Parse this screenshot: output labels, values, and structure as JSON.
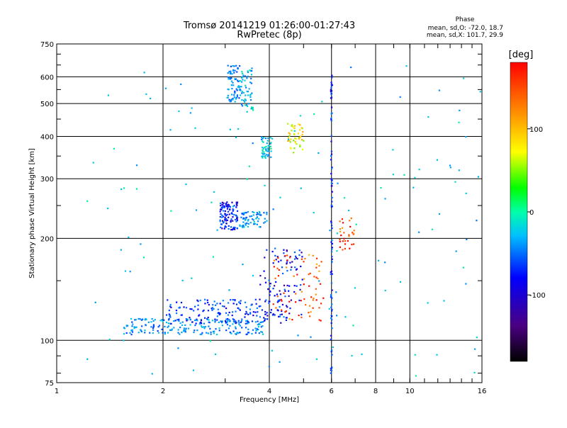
{
  "chart_data": {
    "type": "scatter",
    "title": "Tromsø 20141219 01:26:00-01:27:43",
    "subtitle": "RwPretec (8p)",
    "xlabel": "Frequency [MHz]",
    "ylabel": "Stationary phase Virtual Height [km]",
    "x_scale": "log",
    "y_scale": "log",
    "xlim": [
      1,
      16
    ],
    "ylim": [
      75,
      750
    ],
    "x_ticks": [
      1,
      2,
      4,
      6,
      8,
      10,
      16
    ],
    "x_tick_labels": [
      "1",
      "2",
      "4",
      "6",
      "8",
      "10",
      "16"
    ],
    "y_ticks": [
      75,
      100,
      200,
      300,
      400,
      500,
      600,
      750
    ],
    "y_tick_labels": [
      "75",
      "100",
      "200",
      "300",
      "400",
      "500",
      "600",
      "750"
    ],
    "grid": true,
    "stats": {
      "heading": "Phase",
      "line_o": "mean, sd,O: -72.0, 18.7",
      "line_x": "mean, sd,X: 101.7, 29.9"
    },
    "colorbar": {
      "label": "[deg]",
      "min": -180,
      "max": 180,
      "ticks": [
        100,
        0,
        -100
      ],
      "tick_labels": [
        "100",
        "0",
        "-100"
      ]
    },
    "clusters": [
      {
        "name": "E-region lower trace",
        "xmin": 1.55,
        "xmax": 3.9,
        "ymin": 104,
        "ymax": 116,
        "phase": -60,
        "n": 220
      },
      {
        "name": "E-region upper trace",
        "xmin": 2.0,
        "xmax": 4.5,
        "ymin": 112,
        "ymax": 132,
        "phase": -95,
        "n": 160
      },
      {
        "name": "Rising trace near 4-5 MHz",
        "xmin": 3.7,
        "xmax": 5.0,
        "ymin": 118,
        "ymax": 185,
        "phase": -110,
        "n": 90
      },
      {
        "name": "Red trace",
        "xmin": 4.1,
        "xmax": 5.7,
        "ymin": 112,
        "ymax": 180,
        "phase": 150,
        "n": 70
      },
      {
        "name": "F-region dense trace",
        "xmin": 2.9,
        "xmax": 3.25,
        "ymin": 212,
        "ymax": 256,
        "phase": -105,
        "n": 110
      },
      {
        "name": "F-region continuation",
        "xmin": 3.25,
        "xmax": 3.95,
        "ymin": 215,
        "ymax": 240,
        "phase": -55,
        "n": 70
      },
      {
        "name": "High cluster left",
        "xmin": 3.05,
        "xmax": 3.3,
        "ymin": 500,
        "ymax": 650,
        "phase": -65,
        "n": 70
      },
      {
        "name": "High cluster right",
        "xmin": 3.3,
        "xmax": 3.6,
        "ymin": 470,
        "ymax": 640,
        "phase": -45,
        "n": 60
      },
      {
        "name": "Cluster near 370 km",
        "xmin": 3.8,
        "xmax": 4.05,
        "ymin": 345,
        "ymax": 400,
        "phase": -40,
        "n": 45
      },
      {
        "name": "Yellow cluster",
        "xmin": 4.5,
        "xmax": 5.0,
        "ymin": 355,
        "ymax": 440,
        "phase": 95,
        "n": 45
      },
      {
        "name": "Vertical line at 6 MHz",
        "xmin": 5.97,
        "xmax": 6.03,
        "ymin": 78,
        "ymax": 620,
        "phase": -100,
        "n": 90
      },
      {
        "name": "Orange cluster near 6.5 MHz",
        "xmin": 6.3,
        "xmax": 7.0,
        "ymin": 185,
        "ymax": 230,
        "phase": 160,
        "n": 30
      },
      {
        "name": "Scattered points",
        "xmin": 1.2,
        "xmax": 16,
        "ymin": 78,
        "ymax": 650,
        "phase": -40,
        "n": 140
      }
    ]
  }
}
